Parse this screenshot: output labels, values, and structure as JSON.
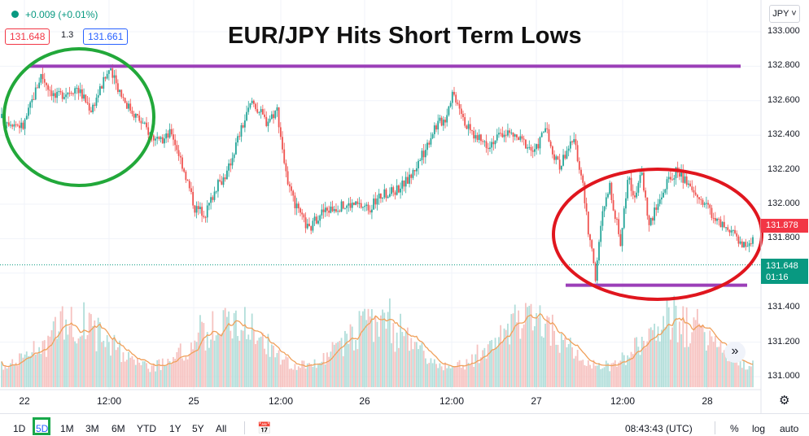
{
  "header": {
    "change": "+0.009 (+0.01%)",
    "bid": "131.648",
    "spread": "1.3",
    "ask": "131.661",
    "currency": "JPY ˅"
  },
  "annotation_title": "EUR/JPY Hits Short Term Lows",
  "colors": {
    "up": "#26a69a",
    "down": "#ef5350",
    "volume_ma": "#f0a05a",
    "resistance_line": "#9b3fb8",
    "support_line": "#9b3fb8",
    "green_circle": "#22a83a",
    "red_circle": "#e0161e"
  },
  "price_axis": {
    "ticks": [
      "133.000",
      "132.800",
      "132.600",
      "132.400",
      "132.200",
      "132.000",
      "131.800",
      "131.600",
      "131.400",
      "131.200",
      "131.000"
    ],
    "current_price_label": "131.878",
    "bid_price_label": "131.648",
    "countdown": "01:16"
  },
  "time_axis": {
    "ticks": [
      "22",
      "12:00",
      "25",
      "12:00",
      "26",
      "12:00",
      "27",
      "12:00",
      "28"
    ]
  },
  "chart_data": {
    "type": "candlestick",
    "title": "EUR/JPY Hits Short Term Lows",
    "ylim": [
      130.95,
      133.05
    ],
    "x_labels": [
      "22",
      "12:00",
      "25",
      "12:00",
      "26",
      "12:00",
      "27",
      "12:00",
      "28"
    ],
    "price_path": [
      [
        0,
        132.5
      ],
      [
        12,
        132.45
      ],
      [
        22,
        132.75
      ],
      [
        30,
        132.62
      ],
      [
        42,
        132.68
      ],
      [
        50,
        132.55
      ],
      [
        60,
        132.78
      ],
      [
        70,
        132.58
      ],
      [
        80,
        132.45
      ],
      [
        88,
        132.35
      ],
      [
        95,
        132.42
      ],
      [
        102,
        132.2
      ],
      [
        108,
        131.98
      ],
      [
        114,
        131.95
      ],
      [
        120,
        132.1
      ],
      [
        126,
        132.18
      ],
      [
        132,
        132.38
      ],
      [
        140,
        132.6
      ],
      [
        148,
        132.48
      ],
      [
        154,
        132.55
      ],
      [
        160,
        132.1
      ],
      [
        166,
        131.95
      ],
      [
        172,
        131.85
      ],
      [
        178,
        131.95
      ],
      [
        186,
        131.98
      ],
      [
        196,
        132.0
      ],
      [
        206,
        131.98
      ],
      [
        212,
        132.05
      ],
      [
        220,
        132.08
      ],
      [
        228,
        132.15
      ],
      [
        236,
        132.3
      ],
      [
        242,
        132.45
      ],
      [
        248,
        132.5
      ],
      [
        252,
        132.65
      ],
      [
        256,
        132.58
      ],
      [
        260,
        132.45
      ],
      [
        266,
        132.38
      ],
      [
        272,
        132.35
      ],
      [
        282,
        132.42
      ],
      [
        292,
        132.36
      ],
      [
        298,
        132.3
      ],
      [
        304,
        132.45
      ],
      [
        308,
        132.28
      ],
      [
        312,
        132.22
      ],
      [
        316,
        132.32
      ],
      [
        320,
        132.36
      ],
      [
        324,
        132.18
      ],
      [
        328,
        131.85
      ],
      [
        332,
        131.58
      ],
      [
        336,
        131.95
      ],
      [
        340,
        132.1
      ],
      [
        346,
        131.78
      ],
      [
        350,
        132.15
      ],
      [
        354,
        132.05
      ],
      [
        358,
        132.18
      ],
      [
        362,
        131.88
      ],
      [
        366,
        131.98
      ],
      [
        372,
        132.12
      ],
      [
        378,
        132.2
      ],
      [
        384,
        132.1
      ],
      [
        388,
        132.05
      ],
      [
        394,
        132.0
      ],
      [
        400,
        131.9
      ],
      [
        406,
        131.84
      ],
      [
        412,
        131.8
      ],
      [
        416,
        131.75
      ],
      [
        420,
        131.8
      ]
    ],
    "resistance_line": 132.8,
    "support_line": 131.53,
    "last_price": 131.878,
    "bid_line": 131.648
  },
  "bottom_bar": {
    "ranges": [
      "1D",
      "5D",
      "1M",
      "3M",
      "6M",
      "YTD",
      "1Y",
      "5Y",
      "All"
    ],
    "active_range": "5D",
    "time": "08:43:43 (UTC)",
    "percent": "%",
    "log": "log",
    "auto": "auto"
  }
}
